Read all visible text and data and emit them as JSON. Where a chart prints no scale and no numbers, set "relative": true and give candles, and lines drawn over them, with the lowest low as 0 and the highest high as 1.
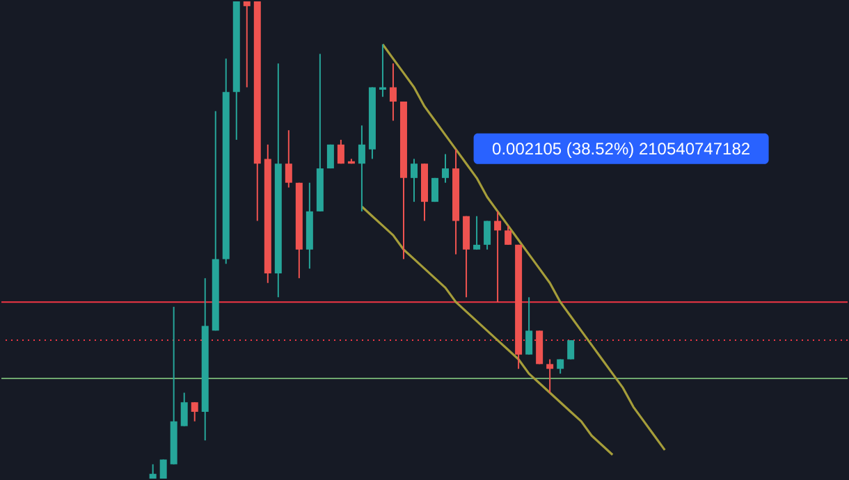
{
  "chart_data": {
    "type": "candlestick",
    "relative": true,
    "tick_labels": false,
    "categories": [
      null,
      null,
      null,
      null,
      null,
      null,
      null,
      null,
      null,
      null,
      null,
      null,
      null,
      null,
      null,
      null,
      null,
      null,
      null,
      null,
      null,
      null,
      null,
      null,
      null,
      null,
      null,
      null,
      null,
      null,
      null,
      null,
      null,
      null,
      null,
      null,
      null,
      null,
      null,
      null,
      null,
      null,
      null,
      null,
      null,
      null,
      null,
      null,
      null,
      null,
      null,
      null,
      null,
      null,
      null,
      null,
      null,
      null,
      null,
      null,
      null,
      null,
      null,
      null,
      null,
      null,
      null,
      null,
      null,
      null,
      null,
      null,
      null,
      null,
      null,
      null,
      null,
      null,
      null,
      null,
      null
    ],
    "ohlc": [
      null,
      null,
      null,
      null,
      null,
      null,
      null,
      null,
      null,
      null,
      null,
      null,
      null,
      null,
      [
        0,
        0.03,
        0,
        0.01
      ],
      [
        0,
        0.04,
        0,
        0.04
      ],
      [
        0.03,
        0.36,
        0.03,
        0.12
      ],
      [
        0.11,
        0.18,
        0.11,
        0.16
      ],
      [
        0.16,
        0.16,
        0.12,
        0.14
      ],
      [
        0.14,
        0.42,
        0.08,
        0.32
      ],
      [
        0.31,
        0.77,
        0.31,
        0.46
      ],
      [
        0.46,
        0.88,
        0.45,
        0.81
      ],
      [
        0.81,
        1,
        0.71,
        1
      ],
      [
        1,
        1,
        0.82,
        0.99
      ],
      [
        1,
        1,
        0.54,
        0.66
      ],
      [
        0.67,
        0.7,
        0.41,
        0.43
      ],
      [
        0.43,
        0.87,
        0.38,
        0.66
      ],
      [
        0.66,
        0.73,
        0.61,
        0.62
      ],
      [
        0.62,
        0.62,
        0.42,
        0.48
      ],
      [
        0.48,
        0.62,
        0.44,
        0.56
      ],
      [
        0.56,
        0.89,
        0.56,
        0.65
      ],
      [
        0.65,
        0.7,
        0.65,
        0.7
      ],
      [
        0.7,
        0.71,
        0.66,
        0.66
      ],
      [
        0.665,
        0.67,
        0.66,
        0.66
      ],
      [
        0.66,
        0.74,
        0.56,
        0.7
      ],
      [
        0.69,
        0.82,
        0.67,
        0.82
      ],
      [
        0.815,
        0.91,
        0.8,
        0.82
      ],
      [
        0.82,
        0.87,
        0.75,
        0.79
      ],
      [
        0.79,
        0.79,
        0.46,
        0.63
      ],
      [
        0.63,
        0.67,
        0.58,
        0.66
      ],
      [
        0.66,
        0.66,
        0.54,
        0.58
      ],
      [
        0.58,
        0.63,
        0.58,
        0.63
      ],
      [
        0.63,
        0.68,
        0.62,
        0.65
      ],
      [
        0.65,
        0.69,
        0.47,
        0.54
      ],
      [
        0.55,
        0.55,
        0.38,
        0.48
      ],
      [
        0.48,
        0.55,
        0.48,
        0.49
      ],
      [
        0.49,
        0.54,
        0.48,
        0.54
      ],
      [
        0.54,
        0.56,
        0.37,
        0.52
      ],
      [
        0.52,
        0.53,
        0.49,
        0.49
      ],
      [
        0.49,
        0.49,
        0.23,
        0.26
      ],
      [
        0.26,
        0.38,
        0.26,
        0.31
      ],
      [
        0.31,
        0.31,
        0.24,
        0.24
      ],
      [
        0.24,
        0.25,
        0.18,
        0.23
      ],
      [
        0.23,
        0.25,
        0.22,
        0.25
      ],
      [
        0.25,
        0.29,
        0.25,
        0.29
      ],
      null,
      null,
      null,
      null,
      null,
      null,
      null,
      null,
      null,
      null,
      null,
      null,
      null,
      null,
      null,
      null,
      null,
      null,
      null,
      null,
      null,
      null,
      null,
      null,
      null,
      null
    ],
    "colors": [
      null,
      null,
      null,
      null,
      null,
      null,
      null,
      null,
      null,
      null,
      null,
      null,
      null,
      null,
      "#26a69a",
      "#26a69a",
      "#26a69a",
      "#26a69a",
      "#ef5350",
      "#26a69a",
      "#26a69a",
      "#26a69a",
      "#26a69a",
      "#ef5350",
      "#ef5350",
      "#ef5350",
      "#26a69a",
      "#ef5350",
      "#ef5350",
      "#26a69a",
      "#26a69a",
      "#26a69a",
      "#ef5350",
      "#ef5350",
      "#26a69a",
      "#26a69a",
      "#26a69a",
      "#ef5350",
      "#ef5350",
      "#26a69a",
      "#ef5350",
      "#26a69a",
      "#26a69a",
      "#ef5350",
      "#ef5350",
      "#26a69a",
      "#26a69a",
      "#ef5350",
      "#ef5350",
      "#ef5350",
      "#26a69a",
      "#ef5350",
      "#ef5350",
      "#26a69a",
      "#26a69a",
      null,
      null,
      null,
      null,
      null,
      null,
      null,
      null,
      null,
      null,
      null,
      null,
      null,
      null,
      null,
      null,
      null,
      null,
      null,
      null,
      null,
      null,
      null,
      null,
      null,
      null
    ],
    "series": [
      {
        "type": "line",
        "color": "#a59d3a",
        "values": [
          null,
          null,
          null,
          null,
          null,
          null,
          null,
          null,
          null,
          null,
          null,
          null,
          null,
          null,
          null,
          null,
          null,
          null,
          null,
          null,
          null,
          null,
          null,
          null,
          null,
          null,
          null,
          null,
          null,
          null,
          null,
          null,
          null,
          null,
          null,
          null,
          0.91,
          0.88,
          0.85,
          0.82,
          0.78,
          0.75,
          0.72,
          0.69,
          0.66,
          0.63,
          0.59,
          0.56,
          0.53,
          0.5,
          0.47,
          0.44,
          0.41,
          0.37,
          0.34,
          0.31,
          0.28,
          0.25,
          0.22,
          0.19,
          0.15,
          0.12,
          0.09,
          0.06,
          null,
          null,
          null,
          null,
          null,
          null,
          null,
          null,
          null,
          null,
          null,
          null,
          null,
          null,
          null,
          null,
          null
        ]
      },
      {
        "type": "line",
        "color": "#a59d3a",
        "values": [
          null,
          null,
          null,
          null,
          null,
          null,
          null,
          null,
          null,
          null,
          null,
          null,
          null,
          null,
          null,
          null,
          null,
          null,
          null,
          null,
          null,
          null,
          null,
          null,
          null,
          null,
          null,
          null,
          null,
          null,
          null,
          null,
          null,
          null,
          0.57,
          0.55,
          0.53,
          0.51,
          0.48,
          0.46,
          0.44,
          0.42,
          0.4,
          0.37,
          0.35,
          0.33,
          0.31,
          0.29,
          0.27,
          0.25,
          0.22,
          0.2,
          0.18,
          0.16,
          0.14,
          0.12,
          0.09,
          0.07,
          0.05,
          null,
          null,
          null,
          null,
          null,
          null,
          null,
          null,
          null,
          null,
          null,
          null,
          null,
          null,
          null,
          null,
          null,
          null,
          null,
          null,
          null,
          null
        ]
      }
    ],
    "ref_lines": [
      {
        "axis": "y",
        "value": 0.37,
        "color": "#f23645",
        "line_style": "solid"
      },
      {
        "axis": "y",
        "value": 0.29,
        "color": "#f23645",
        "line_style": "dotted"
      },
      {
        "axis": "y",
        "value": 0.21,
        "color": "#6fa86f",
        "line_style": "solid"
      }
    ],
    "annotations": [
      "0.002105 (38.52%) 210540747182"
    ]
  }
}
